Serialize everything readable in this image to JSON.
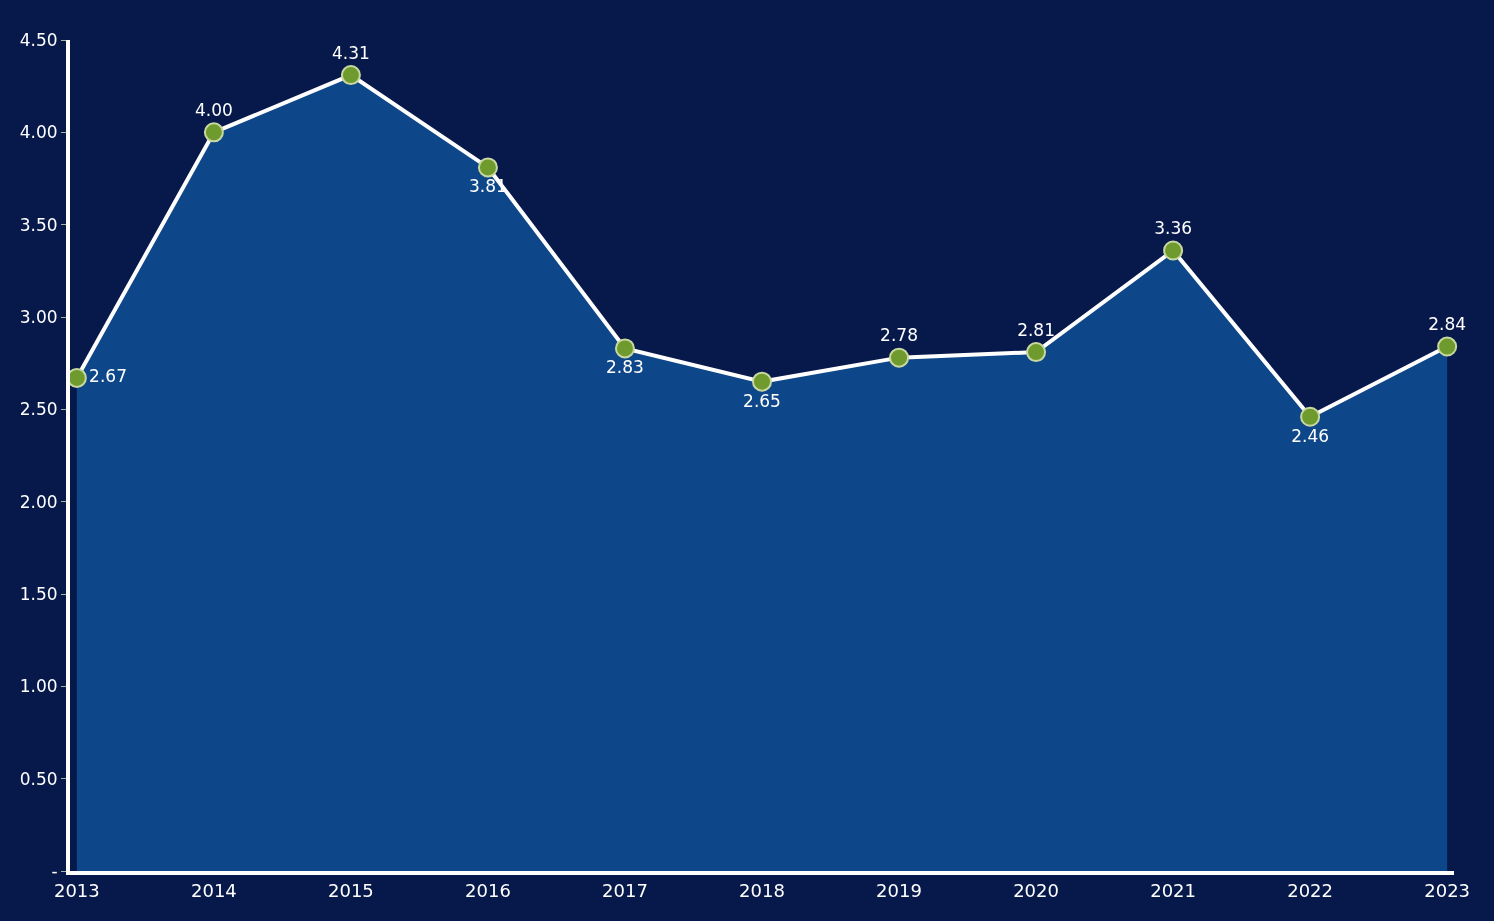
{
  "chart_data": {
    "type": "area",
    "categories": [
      "2013",
      "2014",
      "2015",
      "2016",
      "2017",
      "2018",
      "2019",
      "2020",
      "2021",
      "2022",
      "2023"
    ],
    "series": [
      {
        "color": "#ffffff",
        "values": [
          2.67,
          4.0,
          4.31,
          3.81,
          2.83,
          2.65,
          2.78,
          2.81,
          3.36,
          2.46,
          2.84
        ]
      }
    ],
    "ylim": [
      0,
      4.5
    ],
    "yticks": [
      {
        "value": 0,
        "label": "-"
      },
      {
        "value": 0.5,
        "label": "0.50"
      },
      {
        "value": 1,
        "label": "1.00"
      },
      {
        "value": 1.5,
        "label": "1.50"
      },
      {
        "value": 2,
        "label": "2.00"
      },
      {
        "value": 2.5,
        "label": "2.50"
      },
      {
        "value": 3,
        "label": "3.00"
      },
      {
        "value": 3.5,
        "label": "3.50"
      },
      {
        "value": 4,
        "label": "4.00"
      },
      {
        "value": 4.5,
        "label": "4.50"
      }
    ],
    "value_labels": [
      "2.67",
      "4.00",
      "4.31",
      "3.81",
      "2.83",
      "2.65",
      "2.78",
      "2.81",
      "3.36",
      "2.46",
      "2.84"
    ],
    "marker": "circle",
    "line_style": "solid"
  }
}
